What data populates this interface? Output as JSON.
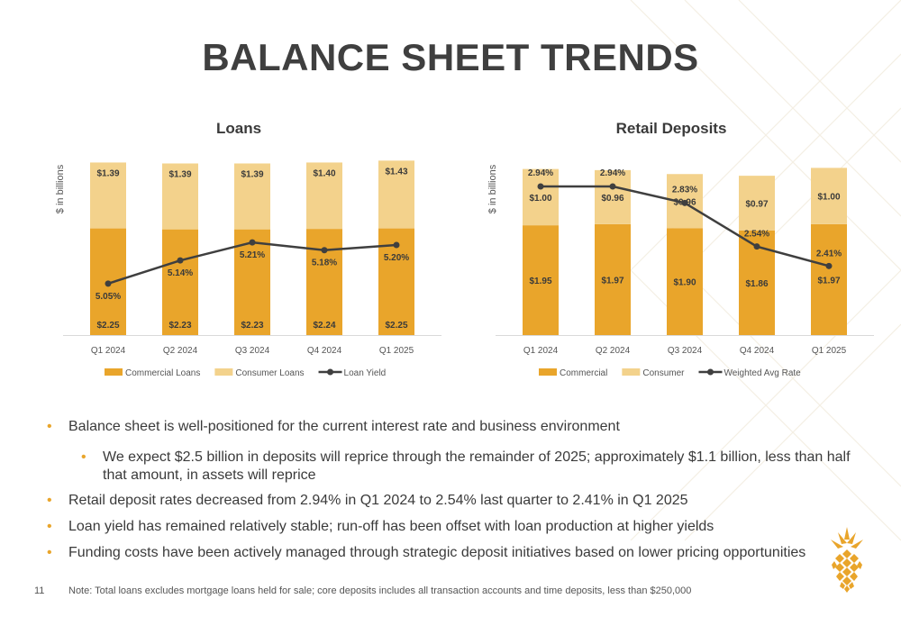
{
  "page": {
    "title": "BALANCE SHEET TRENDS",
    "page_number": "11",
    "footnote": "Note: Total loans excludes mortgage loans held for sale; core deposits includes all transaction accounts and time deposits, less than $250,000"
  },
  "colors": {
    "primary": "#e9a52b",
    "secondary": "#f3d28c",
    "line": "#3f3f3f",
    "accent_bullet": "#e9a52b"
  },
  "bullets": [
    {
      "level": 1,
      "text": "Balance sheet is well-positioned for the current interest rate and business environment"
    },
    {
      "level": 2,
      "text": "We expect $2.5 billion in deposits will reprice through the remainder of 2025; approximately $1.1 billion, less than half that amount, in assets will reprice"
    },
    {
      "level": 1,
      "text": "Retail deposit rates decreased from 2.94% in Q1 2024 to 2.54% last quarter to 2.41% in Q1 2025"
    },
    {
      "level": 1,
      "text": "Loan yield has remained relatively stable; run-off has been offset with loan production at higher yields"
    },
    {
      "level": 1,
      "text": "Funding costs have been actively managed through strategic deposit initiatives based on lower pricing opportunities"
    }
  ],
  "logo": {
    "icon": "pineapple-icon"
  },
  "chart_data": [
    {
      "type": "bar",
      "stacked": true,
      "title": "Loans",
      "ylabel": "$ in billions",
      "categories": [
        "Q1 2024",
        "Q2 2024",
        "Q3 2024",
        "Q4 2024",
        "Q1 2025"
      ],
      "series": [
        {
          "name": "Commercial Loans",
          "values": [
            2.25,
            2.23,
            2.23,
            2.24,
            2.25
          ],
          "labels": [
            "$2.25",
            "$2.23",
            "$2.23",
            "$2.24",
            "$2.25"
          ]
        },
        {
          "name": "Consumer Loans",
          "values": [
            1.39,
            1.39,
            1.39,
            1.4,
            1.43
          ],
          "labels": [
            "$1.39",
            "$1.39",
            "$1.39",
            "$1.40",
            "$1.43"
          ]
        }
      ],
      "line": {
        "name": "Loan Yield",
        "values": [
          5.05,
          5.14,
          5.21,
          5.18,
          5.2
        ],
        "labels": [
          "5.05%",
          "5.14%",
          "5.21%",
          "5.18%",
          "5.20%"
        ]
      },
      "legend": [
        "Commercial Loans",
        "Consumer Loans",
        "Loan Yield"
      ],
      "legend_position": "bottom"
    },
    {
      "type": "bar",
      "stacked": true,
      "title": "Retail Deposits",
      "ylabel": "$ in billions",
      "categories": [
        "Q1 2024",
        "Q2 2024",
        "Q3 2024",
        "Q4 2024",
        "Q1 2025"
      ],
      "series": [
        {
          "name": "Commercial",
          "values": [
            1.95,
            1.97,
            1.9,
            1.86,
            1.97
          ],
          "labels": [
            "$1.95",
            "$1.97",
            "$1.90",
            "$1.86",
            "$1.97"
          ]
        },
        {
          "name": "Consumer",
          "values": [
            1.0,
            0.96,
            0.96,
            0.97,
            1.0
          ],
          "labels": [
            "$1.00",
            "$0.96",
            "$0.96",
            "$0.97",
            "$1.00"
          ]
        }
      ],
      "line": {
        "name": "Weighted Avg Rate",
        "values": [
          2.94,
          2.94,
          2.83,
          2.54,
          2.41
        ],
        "labels": [
          "2.94%",
          "2.94%",
          "2.83%",
          "2.54%",
          "2.41%"
        ]
      },
      "legend": [
        "Commercial",
        "Consumer",
        "Weighted Avg Rate"
      ],
      "legend_position": "bottom"
    }
  ]
}
